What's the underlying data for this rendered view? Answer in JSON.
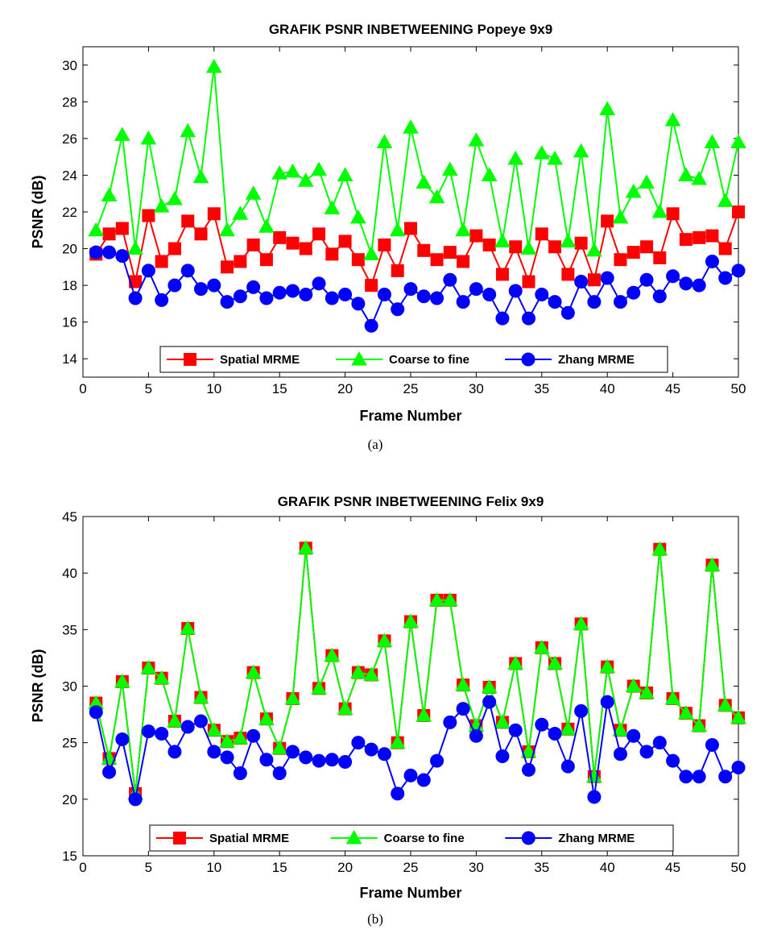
{
  "chart_data": [
    {
      "type": "line",
      "title": "GRAFIK PSNR INBETWEENING Popeye 9x9",
      "xlabel": "Frame Number",
      "ylabel": "PSNR (dB)",
      "caption": "(a)",
      "xlim": [
        0,
        50
      ],
      "ylim": [
        13,
        31
      ],
      "xticks": [
        0,
        5,
        10,
        15,
        20,
        25,
        30,
        35,
        40,
        45,
        50
      ],
      "yticks": [
        14,
        16,
        18,
        20,
        22,
        24,
        26,
        28,
        30
      ],
      "grid": false,
      "legend_position": "bottom",
      "x": [
        1,
        2,
        3,
        4,
        5,
        6,
        7,
        8,
        9,
        10,
        11,
        12,
        13,
        14,
        15,
        16,
        17,
        18,
        19,
        20,
        21,
        22,
        23,
        24,
        25,
        26,
        27,
        28,
        29,
        30,
        31,
        32,
        33,
        34,
        35,
        36,
        37,
        38,
        39,
        40,
        41,
        42,
        43,
        44,
        45,
        46,
        47,
        48,
        49,
        50
      ],
      "series": [
        {
          "name": "Spatial MRME",
          "color": "#ff0000",
          "marker": "square",
          "values": [
            19.7,
            20.8,
            21.1,
            18.2,
            21.8,
            19.3,
            20.0,
            21.5,
            20.8,
            21.9,
            19.0,
            19.3,
            20.2,
            19.4,
            20.6,
            20.3,
            20.0,
            20.8,
            19.7,
            20.4,
            19.4,
            18.0,
            20.2,
            18.8,
            21.1,
            19.9,
            19.4,
            19.8,
            19.3,
            20.7,
            20.2,
            18.6,
            20.1,
            18.2,
            20.8,
            20.1,
            18.6,
            20.3,
            18.3,
            21.5,
            19.4,
            19.8,
            20.1,
            19.5,
            21.9,
            20.5,
            20.6,
            20.7,
            20.0,
            22.0
          ]
        },
        {
          "name": "Coarse to fine",
          "color": "#00ff00",
          "marker": "triangle",
          "values": [
            21.0,
            22.9,
            26.2,
            20.0,
            26.0,
            22.3,
            22.7,
            26.4,
            23.9,
            29.9,
            21.0,
            21.9,
            23.0,
            21.2,
            24.1,
            24.2,
            23.7,
            24.3,
            22.2,
            24.0,
            21.7,
            19.7,
            25.8,
            21.0,
            26.6,
            23.6,
            22.8,
            24.3,
            21.0,
            25.9,
            24.0,
            20.4,
            24.9,
            20.0,
            25.2,
            24.9,
            20.4,
            25.3,
            19.9,
            27.6,
            21.7,
            23.1,
            23.6,
            22.0,
            27.0,
            24.0,
            23.8,
            25.8,
            22.6,
            25.8
          ]
        },
        {
          "name": "Zhang MRME",
          "color": "#0000ff",
          "marker": "circle",
          "values": [
            19.8,
            19.8,
            19.6,
            17.3,
            18.8,
            17.2,
            18.0,
            18.8,
            17.8,
            18.0,
            17.1,
            17.4,
            17.9,
            17.3,
            17.6,
            17.7,
            17.5,
            18.1,
            17.3,
            17.5,
            17.0,
            15.8,
            17.5,
            16.7,
            17.8,
            17.4,
            17.3,
            18.3,
            17.1,
            17.8,
            17.5,
            16.2,
            17.7,
            16.2,
            17.5,
            17.1,
            16.5,
            18.2,
            17.1,
            18.4,
            17.1,
            17.6,
            18.3,
            17.4,
            18.5,
            18.1,
            18.0,
            19.3,
            18.4,
            18.8
          ]
        }
      ]
    },
    {
      "type": "line",
      "title": "GRAFIK PSNR INBETWEENING Felix 9x9",
      "xlabel": "Frame Number",
      "ylabel": "PSNR (dB)",
      "caption": "(b)",
      "xlim": [
        0,
        50
      ],
      "ylim": [
        15,
        45
      ],
      "xticks": [
        0,
        5,
        10,
        15,
        20,
        25,
        30,
        35,
        40,
        45,
        50
      ],
      "yticks": [
        15,
        20,
        25,
        30,
        35,
        40,
        45
      ],
      "grid": false,
      "legend_position": "bottom",
      "x": [
        1,
        2,
        3,
        4,
        5,
        6,
        7,
        8,
        9,
        10,
        11,
        12,
        13,
        14,
        15,
        16,
        17,
        18,
        19,
        20,
        21,
        22,
        23,
        24,
        25,
        26,
        27,
        28,
        29,
        30,
        31,
        32,
        33,
        34,
        35,
        36,
        37,
        38,
        39,
        40,
        41,
        42,
        43,
        44,
        45,
        46,
        47,
        48,
        49,
        50
      ],
      "series": [
        {
          "name": "Spatial MRME",
          "color": "#ff0000",
          "marker": "square",
          "values": [
            28.5,
            23.6,
            30.4,
            20.5,
            31.6,
            30.7,
            26.9,
            35.1,
            29.0,
            26.1,
            25.1,
            25.4,
            31.2,
            27.1,
            24.5,
            28.9,
            42.2,
            29.8,
            32.7,
            28.0,
            31.2,
            31.0,
            34.0,
            25.0,
            35.7,
            27.4,
            37.6,
            37.6,
            30.1,
            26.5,
            29.9,
            26.8,
            32.0,
            24.2,
            33.4,
            32.0,
            26.2,
            35.5,
            22.0,
            31.7,
            26.1,
            30.0,
            29.4,
            42.1,
            28.9,
            27.6,
            26.5,
            40.7,
            28.3,
            27.2
          ]
        },
        {
          "name": "Coarse to fine",
          "color": "#00ff00",
          "marker": "triangle",
          "values": [
            28.5,
            23.6,
            30.4,
            20.5,
            31.6,
            30.7,
            26.9,
            35.1,
            29.0,
            26.1,
            25.1,
            25.4,
            31.2,
            27.1,
            24.5,
            28.9,
            42.2,
            29.8,
            32.7,
            28.0,
            31.2,
            31.0,
            34.0,
            25.0,
            35.7,
            27.4,
            37.6,
            37.6,
            30.1,
            26.5,
            29.9,
            26.8,
            32.0,
            24.2,
            33.4,
            32.0,
            26.2,
            35.5,
            22.0,
            31.7,
            26.1,
            30.0,
            29.4,
            42.1,
            28.9,
            27.6,
            26.5,
            40.7,
            28.3,
            27.2
          ]
        },
        {
          "name": "Zhang MRME",
          "color": "#0000ff",
          "marker": "circle",
          "values": [
            27.7,
            22.4,
            25.3,
            20.0,
            26.0,
            25.8,
            24.2,
            26.4,
            26.9,
            24.2,
            23.7,
            22.3,
            25.6,
            23.5,
            22.3,
            24.2,
            23.7,
            23.4,
            23.5,
            23.3,
            25.0,
            24.4,
            24.0,
            20.5,
            22.1,
            21.7,
            23.4,
            26.8,
            28.0,
            25.6,
            28.6,
            23.8,
            26.1,
            22.6,
            26.6,
            25.8,
            22.9,
            27.8,
            20.2,
            28.6,
            24.0,
            25.6,
            24.2,
            25.0,
            23.4,
            22.0,
            22.0,
            24.8,
            22.0,
            22.8
          ]
        }
      ]
    }
  ]
}
